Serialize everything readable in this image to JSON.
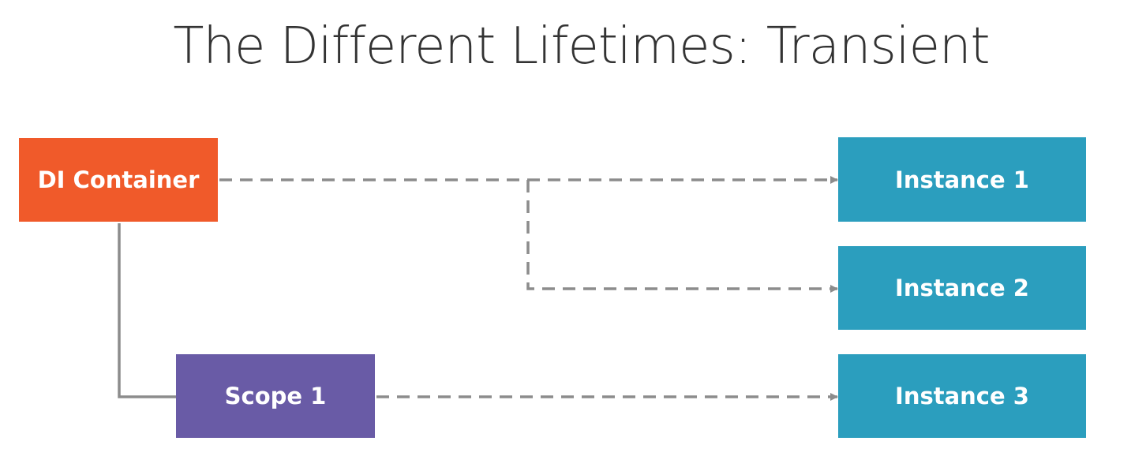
{
  "title": "The Different Lifetimes: Transient",
  "colors": {
    "container": "#f05a2a",
    "scope": "#695ba6",
    "instance": "#2b9ebe",
    "connector": "#8c8c8c",
    "title_text": "#333333"
  },
  "nodes": {
    "di_container": "DI Container",
    "scope_1": "Scope 1",
    "instance_1": "Instance 1",
    "instance_2": "Instance 2",
    "instance_3": "Instance 3"
  },
  "edges": [
    {
      "from": "di_container",
      "to": "instance_1",
      "style": "dashed-arrow"
    },
    {
      "from": "di_container",
      "to": "instance_2",
      "style": "dashed-arrow"
    },
    {
      "from": "di_container",
      "to": "scope_1",
      "style": "solid"
    },
    {
      "from": "scope_1",
      "to": "instance_3",
      "style": "dashed-arrow"
    }
  ]
}
